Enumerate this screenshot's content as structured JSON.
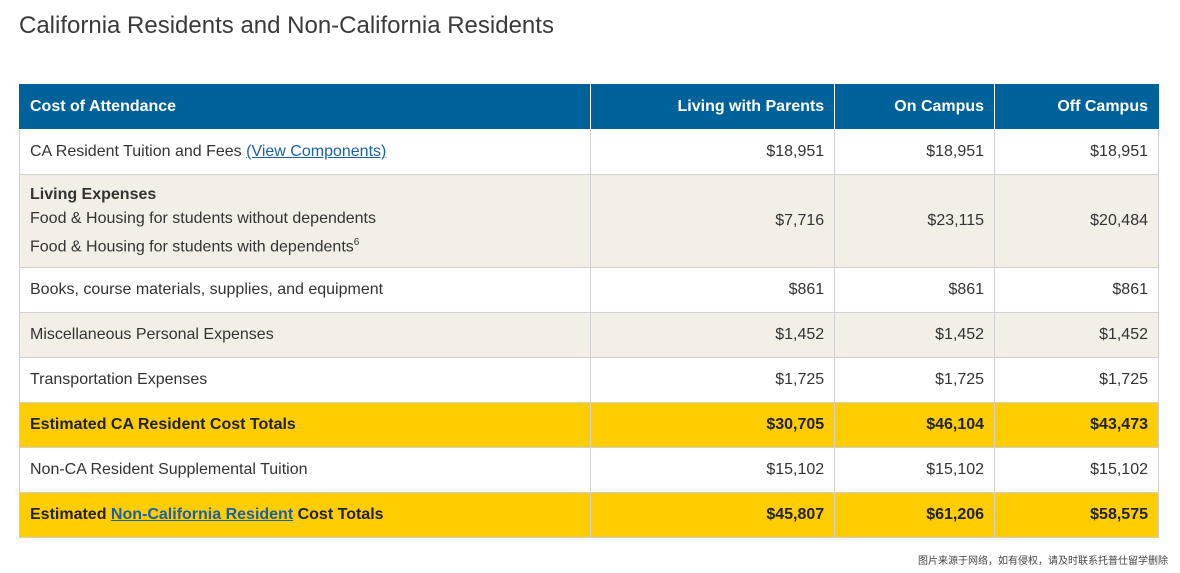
{
  "title": "California Residents and Non-California Residents",
  "table": {
    "headers": [
      "Cost of Attendance",
      "Living with Parents",
      "On Campus",
      "Off Campus"
    ],
    "tuition": {
      "label": "CA Resident Tuition and Fees",
      "link_text": "(View Components)",
      "values": [
        "$18,951",
        "$18,951",
        "$18,951"
      ]
    },
    "living": {
      "heading": "Living Expenses",
      "line1": "Food & Housing for students without dependents",
      "line2": "Food & Housing for students with dependents",
      "footnote": "6",
      "values": [
        "$7,716",
        "$23,115",
        "$20,484"
      ]
    },
    "books": {
      "label": "Books, course materials, supplies, and equipment",
      "values": [
        "$861",
        "$861",
        "$861"
      ]
    },
    "misc": {
      "label": "Miscellaneous Personal Expenses",
      "values": [
        "$1,452",
        "$1,452",
        "$1,452"
      ]
    },
    "transport": {
      "label": "Transportation Expenses",
      "values": [
        "$1,725",
        "$1,725",
        "$1,725"
      ]
    },
    "ca_total": {
      "label": "Estimated CA Resident Cost Totals",
      "values": [
        "$30,705",
        "$46,104",
        "$43,473"
      ]
    },
    "nonca_tuition": {
      "label": "Non-CA Resident Supplemental Tuition",
      "values": [
        "$15,102",
        "$15,102",
        "$15,102"
      ]
    },
    "nonca_total": {
      "label_prefix": "Estimated ",
      "link_text": "Non-California Resident",
      "label_suffix": " Cost Totals",
      "values": [
        "$45,807",
        "$61,206",
        "$58,575"
      ]
    }
  },
  "watermark": "图片来源于网络，如有侵权，请及时联系托普仕留学删除"
}
